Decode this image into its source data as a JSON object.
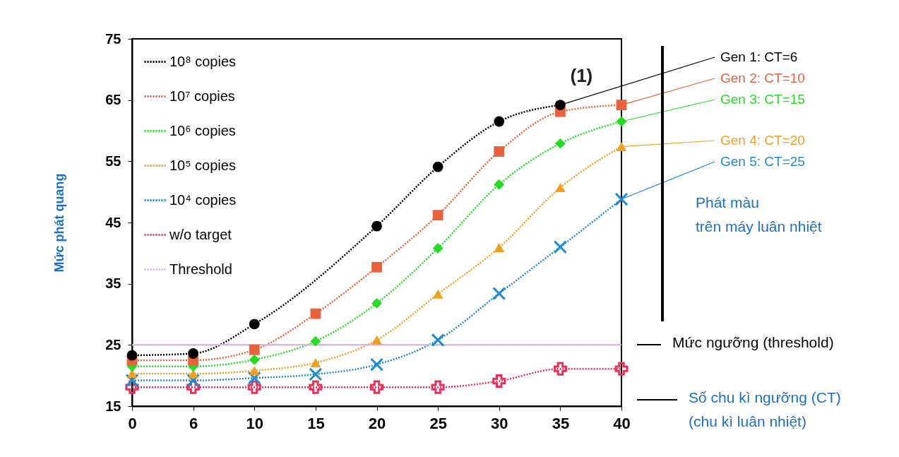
{
  "chart_data": {
    "type": "line",
    "ylabel": "Mức phát quang",
    "categories": [
      "0",
      "6",
      "10",
      "15",
      "20",
      "25",
      "30",
      "35",
      "40"
    ],
    "ylim": [
      15,
      75
    ],
    "yticks": [
      15,
      25,
      35,
      45,
      55,
      65,
      75
    ],
    "grid": false,
    "legend": "top left",
    "line_style": "dotted",
    "series": [
      {
        "name": "10⁸ copies",
        "color": "#000000",
        "marker": "circle",
        "values": [
          23.3,
          23.6,
          28.4,
          null,
          44.4,
          54.1,
          61.5,
          64.2,
          null
        ]
      },
      {
        "name": "10⁷ copies",
        "color": "#e8623c",
        "marker": "square",
        "values": [
          22.5,
          22.5,
          24.2,
          30.1,
          37.7,
          46.2,
          56.6,
          63.1,
          64.2
        ]
      },
      {
        "name": "10⁶ copies",
        "color": "#22dd22",
        "marker": "diamond",
        "values": [
          21.5,
          21.5,
          22.6,
          25.6,
          31.8,
          40.8,
          51.2,
          57.9,
          61.5
        ]
      },
      {
        "name": "10⁵ copies",
        "color": "#f0a020",
        "marker": "triangle",
        "values": [
          20.3,
          20.3,
          20.8,
          22.1,
          25.8,
          33.3,
          40.9,
          50.7,
          57.4
        ]
      },
      {
        "name": "10⁴ copies",
        "color": "#1e8ad0",
        "marker": "x",
        "values": [
          19.2,
          19.2,
          19.6,
          20.2,
          21.8,
          25.8,
          33.4,
          41.0,
          48.8
        ]
      },
      {
        "name": "w/o target",
        "color": "#e8305a",
        "marker": "cross",
        "values": [
          18.1,
          18.1,
          18.1,
          18.1,
          18.1,
          18.1,
          19.1,
          21.1,
          21.1
        ]
      },
      {
        "name": "Threshold",
        "color": "#d8b4f0",
        "marker": "none",
        "line_style": "solid",
        "values": [
          25,
          25,
          25,
          25,
          25,
          25,
          25,
          25,
          25
        ]
      }
    ],
    "annotations": [
      {
        "text": "(1)",
        "x": "35",
        "y": 64.2
      },
      {
        "text": "Gen 1: CT=6",
        "x": "35",
        "y": 64.2
      },
      {
        "text": "Gen 2: CT=10",
        "x": "40",
        "y": 64.2
      },
      {
        "text": "Gen 3: CT=15",
        "x": "40",
        "y": 61.5
      },
      {
        "text": "Gen 4: CT=20",
        "x": "40",
        "y": 57.4
      },
      {
        "text": "Gen 5: CT=25",
        "x": "40",
        "y": 48.8
      },
      "Phát màu\ntrên máy luân nhiệt",
      "Mức ngưỡng (threshold)",
      "Số chu kì ngưỡng (CT)\n(chu kì luân nhiệt)"
    ]
  }
}
